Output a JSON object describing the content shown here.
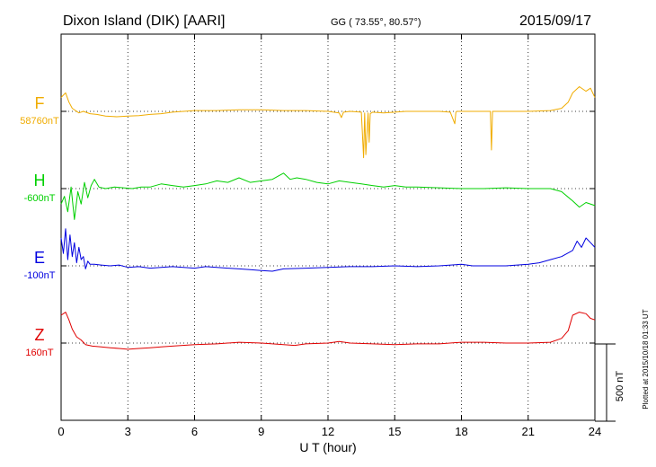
{
  "header": {
    "station": "Dixon Island (DIK)  [AARI]",
    "coords": "GG ( 73.55°,  80.57°)",
    "date": "2015/09/17"
  },
  "scale_label": "500 nT",
  "plotted_note": "Plotted at 2015/10/18 01:33 UT",
  "chart_data": {
    "type": "line",
    "xlabel": "U T (hour)",
    "xlim": [
      0,
      24
    ],
    "xticks": [
      "0",
      "3",
      "6",
      "9",
      "12",
      "15",
      "18",
      "21",
      "24"
    ],
    "ylim": [
      -1250,
      1250
    ],
    "grid": true,
    "scale_nT": 500,
    "series": [
      {
        "name": "F",
        "baseline_label": "58760nT",
        "color": "#f0ac00",
        "offset": 750,
        "x": [
          0,
          0.2,
          0.35,
          0.5,
          0.8,
          1,
          1.3,
          1.6,
          2,
          2.5,
          3,
          3.5,
          4,
          4.5,
          5,
          5.5,
          6,
          7,
          8,
          9,
          10,
          11,
          12,
          12.5,
          12.6,
          12.7,
          13,
          13.5,
          13.6,
          13.65,
          13.7,
          13.8,
          13.85,
          13.9,
          14,
          14.5,
          15,
          15.5,
          16,
          17,
          17.5,
          17.7,
          17.75,
          17.8,
          18,
          18.5,
          19,
          19.3,
          19.35,
          19.4,
          19.5,
          20,
          21,
          22,
          22.5,
          22.8,
          23,
          23.3,
          23.6,
          23.8,
          24
        ],
        "y": [
          90,
          120,
          60,
          20,
          -10,
          0,
          -15,
          -20,
          -30,
          -35,
          -30,
          -28,
          -20,
          -15,
          -5,
          0,
          5,
          5,
          10,
          10,
          5,
          5,
          0,
          -10,
          -40,
          -5,
          0,
          -5,
          -300,
          -10,
          -280,
          -10,
          -200,
          -15,
          -5,
          -10,
          -5,
          0,
          0,
          0,
          -5,
          -80,
          -5,
          0,
          0,
          0,
          0,
          0,
          -250,
          0,
          0,
          0,
          0,
          5,
          20,
          60,
          120,
          160,
          130,
          150,
          90
        ]
      },
      {
        "name": "H",
        "baseline_label": "-600nT",
        "color": "#00d000",
        "offset": 250,
        "x": [
          0,
          0.15,
          0.3,
          0.45,
          0.6,
          0.75,
          0.9,
          1.05,
          1.2,
          1.35,
          1.5,
          1.7,
          2,
          2.4,
          2.8,
          3.2,
          3.6,
          4,
          4.5,
          5,
          5.5,
          6,
          6.5,
          7,
          7.5,
          8,
          8.5,
          9,
          9.5,
          10,
          10.3,
          10.6,
          11,
          11.5,
          12,
          12.5,
          13,
          13.5,
          14,
          14.5,
          15,
          15.5,
          16,
          17,
          18,
          19,
          20,
          21,
          22,
          22.5,
          23,
          23.3,
          23.6,
          24
        ],
        "y": [
          -100,
          -50,
          -150,
          10,
          -200,
          -20,
          -100,
          40,
          -60,
          20,
          60,
          10,
          0,
          10,
          5,
          0,
          10,
          10,
          30,
          20,
          10,
          20,
          30,
          50,
          40,
          70,
          40,
          50,
          60,
          100,
          60,
          70,
          60,
          40,
          30,
          50,
          40,
          30,
          20,
          10,
          20,
          10,
          10,
          5,
          0,
          0,
          5,
          0,
          0,
          -20,
          -80,
          -120,
          -90,
          -110
        ]
      },
      {
        "name": "E",
        "baseline_label": "-100nT",
        "color": "#0000e0",
        "offset": -250,
        "x": [
          0,
          0.1,
          0.2,
          0.3,
          0.4,
          0.5,
          0.6,
          0.7,
          0.8,
          0.9,
          1.0,
          1.1,
          1.2,
          1.3,
          1.5,
          1.8,
          2.2,
          2.6,
          3,
          3.5,
          4,
          4.5,
          5,
          5.5,
          6,
          6.5,
          7,
          7.5,
          8,
          8.5,
          9,
          9.5,
          10,
          11,
          12,
          13,
          14,
          15,
          16,
          17,
          18,
          18.5,
          19,
          20,
          21,
          21.5,
          22,
          22.5,
          23,
          23.2,
          23.4,
          23.6,
          23.8,
          24
        ],
        "y": [
          180,
          80,
          240,
          40,
          200,
          60,
          150,
          20,
          120,
          40,
          60,
          -20,
          30,
          10,
          10,
          5,
          0,
          5,
          -10,
          -5,
          -15,
          -10,
          -5,
          -10,
          -15,
          -5,
          -10,
          -15,
          -20,
          -25,
          -30,
          -35,
          -20,
          -15,
          -10,
          -5,
          -5,
          0,
          -5,
          0,
          10,
          0,
          0,
          0,
          10,
          20,
          40,
          60,
          100,
          160,
          120,
          180,
          150,
          120
        ]
      },
      {
        "name": "Z",
        "baseline_label": "160nT",
        "color": "#e00000",
        "offset": -750,
        "x": [
          0,
          0.2,
          0.35,
          0.5,
          0.7,
          0.9,
          1.1,
          1.4,
          1.8,
          2.2,
          2.6,
          3,
          3.5,
          4,
          4.5,
          5,
          6,
          7,
          8,
          9,
          10,
          10.5,
          11,
          12,
          12.5,
          13,
          14,
          15,
          16,
          17,
          18,
          19,
          20,
          21,
          22,
          22.5,
          22.8,
          23,
          23.3,
          23.6,
          23.8,
          24
        ],
        "y": [
          180,
          200,
          150,
          90,
          40,
          20,
          -10,
          -20,
          -25,
          -30,
          -35,
          -40,
          -35,
          -30,
          -25,
          -20,
          -10,
          -5,
          5,
          0,
          -10,
          -15,
          -5,
          0,
          10,
          0,
          -5,
          -10,
          -5,
          -5,
          5,
          5,
          0,
          0,
          5,
          30,
          80,
          180,
          200,
          190,
          160,
          150
        ]
      }
    ]
  }
}
